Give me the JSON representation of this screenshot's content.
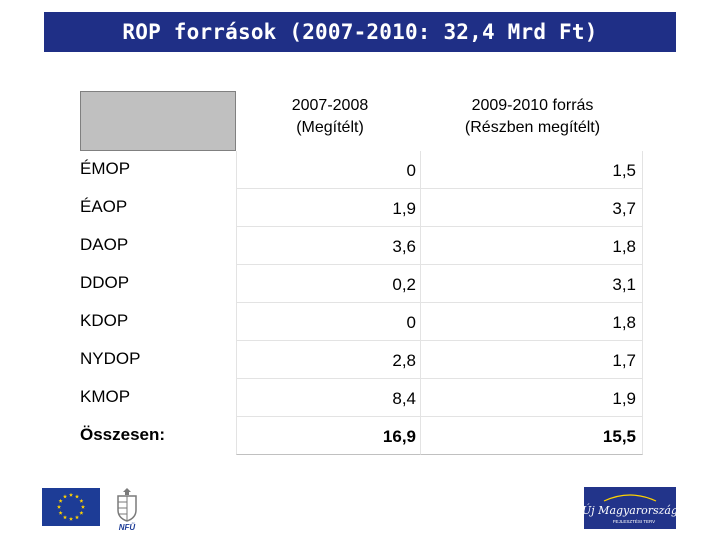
{
  "title": "ROP források (2007-2010: 32,4 Mrd Ft)",
  "table": {
    "headers": [
      {
        "line1": "2007-2008",
        "line2": "(Megítélt)"
      },
      {
        "line1": "2009-2010 forrás",
        "line2": "(Részben megítélt)"
      }
    ],
    "rows": [
      {
        "label": "ÉMOP",
        "v1": "0",
        "v2": "1,5"
      },
      {
        "label": "ÉAOP",
        "v1": "1,9",
        "v2": "3,7"
      },
      {
        "label": "DAOP",
        "v1": "3,6",
        "v2": "1,8"
      },
      {
        "label": "DDOP",
        "v1": "0,2",
        "v2": "3,1"
      },
      {
        "label": "KDOP",
        "v1": "0",
        "v2": "1,8"
      },
      {
        "label": "NYDOP",
        "v1": "2,8",
        "v2": "1,7"
      },
      {
        "label": "KMOP",
        "v1": "8,4",
        "v2": "1,9"
      }
    ],
    "total": {
      "label": "Összesen:",
      "v1": "16,9",
      "v2": "15,5"
    }
  },
  "logos": {
    "nfu_text": "NFÜ",
    "uj_text": "Új Magyarország",
    "uj_subtext": "FEJLESZTÉSI TERV"
  },
  "colors": {
    "title_bg": "#1f2f86",
    "header_blank": "#c0c0c0",
    "eu_blue": "#1d3c96",
    "eu_star": "#ffd200"
  }
}
